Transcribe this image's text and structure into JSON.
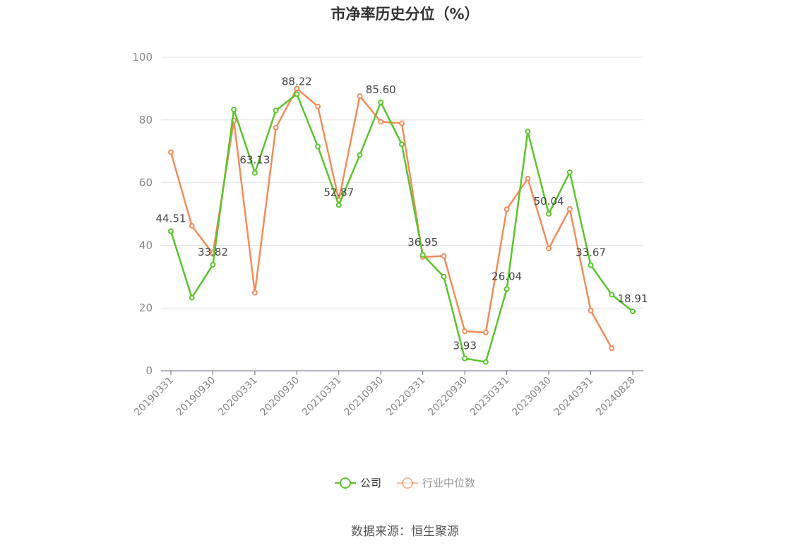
{
  "title": "市净率历史分位（%）",
  "source": "数据来源：恒生聚源",
  "colors": {
    "company": "#5ac42c",
    "industry": "#f28c5a",
    "grid": "#e3e3e8",
    "axis": "#666a80"
  },
  "chart_data": {
    "type": "line",
    "title": "市净率历史分位（%）",
    "xlabel": "",
    "ylabel": "",
    "ylim": [
      0,
      100
    ],
    "yticks": [
      0,
      20,
      40,
      60,
      80,
      100
    ],
    "grid": true,
    "legend_position": "bottom",
    "x_tick_labels": [
      "20190331",
      "20190930",
      "20200331",
      "20200930",
      "20210331",
      "20210930",
      "20220331",
      "20220930",
      "20230331",
      "20230930",
      "20240331",
      "20240828"
    ],
    "series": [
      {
        "name": "公司",
        "values": [
          44.51,
          23.3,
          33.82,
          83.3,
          63.13,
          83.0,
          88.22,
          71.5,
          52.87,
          68.8,
          85.6,
          72.2,
          36.95,
          30.0,
          3.93,
          2.8,
          26.04,
          76.3,
          50.04,
          63.3,
          33.67,
          24.3,
          18.91
        ],
        "labels": [
          "44.51",
          "",
          "33.82",
          "",
          "63.13",
          "",
          "88.22",
          "",
          "52.87",
          "",
          "85.60",
          "",
          "36.95",
          "",
          "3.93",
          "",
          "26.04",
          "",
          "50.04",
          "",
          "33.67",
          "",
          "18.91"
        ]
      },
      {
        "name": "行业中位数",
        "values": [
          69.7,
          46.2,
          37.3,
          79.8,
          24.9,
          77.5,
          90.0,
          84.3,
          54.4,
          87.6,
          79.4,
          78.9,
          36.3,
          36.6,
          12.6,
          12.2,
          51.5,
          61.3,
          39.0,
          51.6,
          19.2,
          7.2,
          null
        ]
      }
    ]
  }
}
